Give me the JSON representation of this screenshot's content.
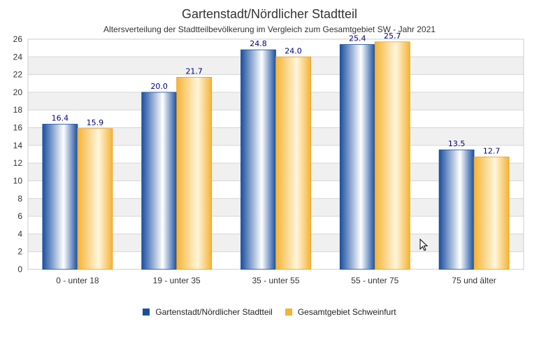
{
  "chart_data": {
    "type": "bar",
    "title": "Gartenstadt/Nördlicher Stadtteil",
    "subtitle": "Altersverteilung der Stadtteilbevölkerung im Vergleich zum Gesamtgebiet SW - Jahr 2021",
    "categories": [
      "0 - unter 18",
      "19 - unter 35",
      "35 - unter 55",
      "55 - unter 75",
      "75 und älter"
    ],
    "series": [
      {
        "name": "Gartenstadt/Nördlicher Stadtteil",
        "values": [
          16.4,
          20.0,
          24.8,
          25.4,
          13.5
        ],
        "color": "#1a4fa0"
      },
      {
        "name": "Gesamtgebiet Schweinfurt",
        "values": [
          15.9,
          21.7,
          24.0,
          25.7,
          12.7
        ],
        "color": "#f5b335"
      }
    ],
    "ylim": [
      0,
      26
    ],
    "yticks": [
      0,
      2,
      4,
      6,
      8,
      10,
      12,
      14,
      16,
      18,
      20,
      22,
      24,
      26
    ],
    "grid": true,
    "legend_position": "bottom",
    "data_label_color": "#000080"
  },
  "cursor_icon": "mouse-pointer-icon"
}
